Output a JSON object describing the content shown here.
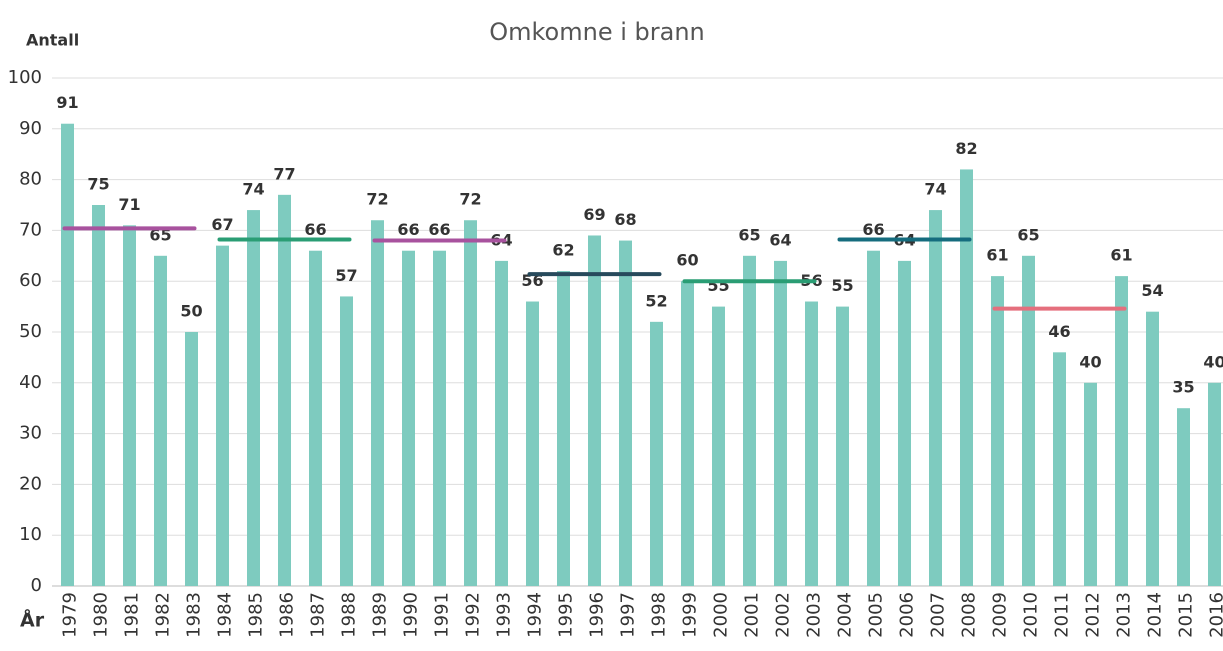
{
  "chart_data": {
    "type": "bar",
    "title": "Omkomne i brann",
    "y_label": "Antall",
    "x_label": "År",
    "categories": [
      "1979",
      "1980",
      "1981",
      "1982",
      "1983",
      "1984",
      "1985",
      "1986",
      "1987",
      "1988",
      "1989",
      "1990",
      "1991",
      "1992",
      "1993",
      "1994",
      "1995",
      "1996",
      "1997",
      "1998",
      "1999",
      "2000",
      "2001",
      "2002",
      "2003",
      "2004",
      "2005",
      "2006",
      "2007",
      "2008",
      "2009",
      "2010",
      "2011",
      "2012",
      "2013",
      "2014",
      "2015",
      "2016"
    ],
    "values": [
      91,
      75,
      71,
      65,
      50,
      67,
      74,
      77,
      66,
      57,
      72,
      66,
      66,
      72,
      64,
      56,
      62,
      69,
      68,
      52,
      60,
      55,
      65,
      64,
      56,
      55,
      66,
      64,
      74,
      82,
      61,
      65,
      46,
      40,
      61,
      54,
      35,
      40
    ],
    "color": "#7ecbbf",
    "ylim": [
      0,
      100
    ],
    "yticks": [
      0,
      10,
      20,
      30,
      40,
      50,
      60,
      70,
      80,
      90,
      100
    ],
    "grid": true,
    "period_averages": [
      {
        "from": "1979",
        "to": "1983",
        "value": 70.4,
        "color": "#a8529e"
      },
      {
        "from": "1984",
        "to": "1988",
        "value": 68.2,
        "color": "#2a9d74"
      },
      {
        "from": "1989",
        "to": "1993",
        "value": 68,
        "color": "#a8529e"
      },
      {
        "from": "1994",
        "to": "1998",
        "value": 61.4,
        "color": "#274a5c"
      },
      {
        "from": "1999",
        "to": "2003",
        "value": 60,
        "color": "#2a9d74"
      },
      {
        "from": "2004",
        "to": "2008",
        "value": 68.2,
        "color": "#156c7e"
      },
      {
        "from": "2009",
        "to": "2013",
        "value": 54.6,
        "color": "#e56f7d"
      }
    ]
  }
}
